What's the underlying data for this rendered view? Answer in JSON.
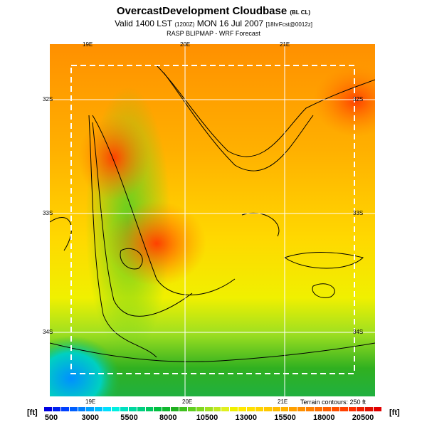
{
  "header": {
    "title": "OvercastDevelopment Cloudbase",
    "title_code": "(BL CL)",
    "valid": "Valid 1400 LST",
    "valid_code": "(1200Z)",
    "day": "MON 16 Jul 2007",
    "fcst": "[18hrFcst@0012z]",
    "subtitle": "RASP BLIPMAP - WRF Forecast"
  },
  "map": {
    "lon_labels_top": [
      "19E",
      "20E",
      "21E"
    ],
    "lon_labels_bottom": [
      "19E",
      "20E",
      "21E"
    ],
    "lat_labels_left": [
      "32S",
      "33S",
      "34S"
    ],
    "lat_labels_right": [
      "32S",
      "33S",
      "34S"
    ],
    "terrain_note": "Terrain contours: 250 ft"
  },
  "colorbar": {
    "unit": "[ft]",
    "ticks": [
      "500",
      "3000",
      "5500",
      "8000",
      "10500",
      "13000",
      "15500",
      "18000",
      "20500"
    ],
    "colors": [
      "#0000e0",
      "#0020f0",
      "#0040ff",
      "#0060ff",
      "#0080ff",
      "#00a0ff",
      "#00c0ff",
      "#00e0ff",
      "#00f0e0",
      "#00e0c0",
      "#00d8a0",
      "#00d080",
      "#00c860",
      "#00c040",
      "#10b830",
      "#20b020",
      "#40c020",
      "#60d020",
      "#80d820",
      "#a0e020",
      "#c0e820",
      "#e0f020",
      "#f0f000",
      "#ffe800",
      "#ffe000",
      "#ffd400",
      "#ffc800",
      "#ffbc00",
      "#ffb000",
      "#ffa000",
      "#ff9000",
      "#ff8000",
      "#ff7000",
      "#ff6000",
      "#ff5000",
      "#ff4000",
      "#ff3000",
      "#f02000",
      "#e01000",
      "#e00000"
    ]
  }
}
